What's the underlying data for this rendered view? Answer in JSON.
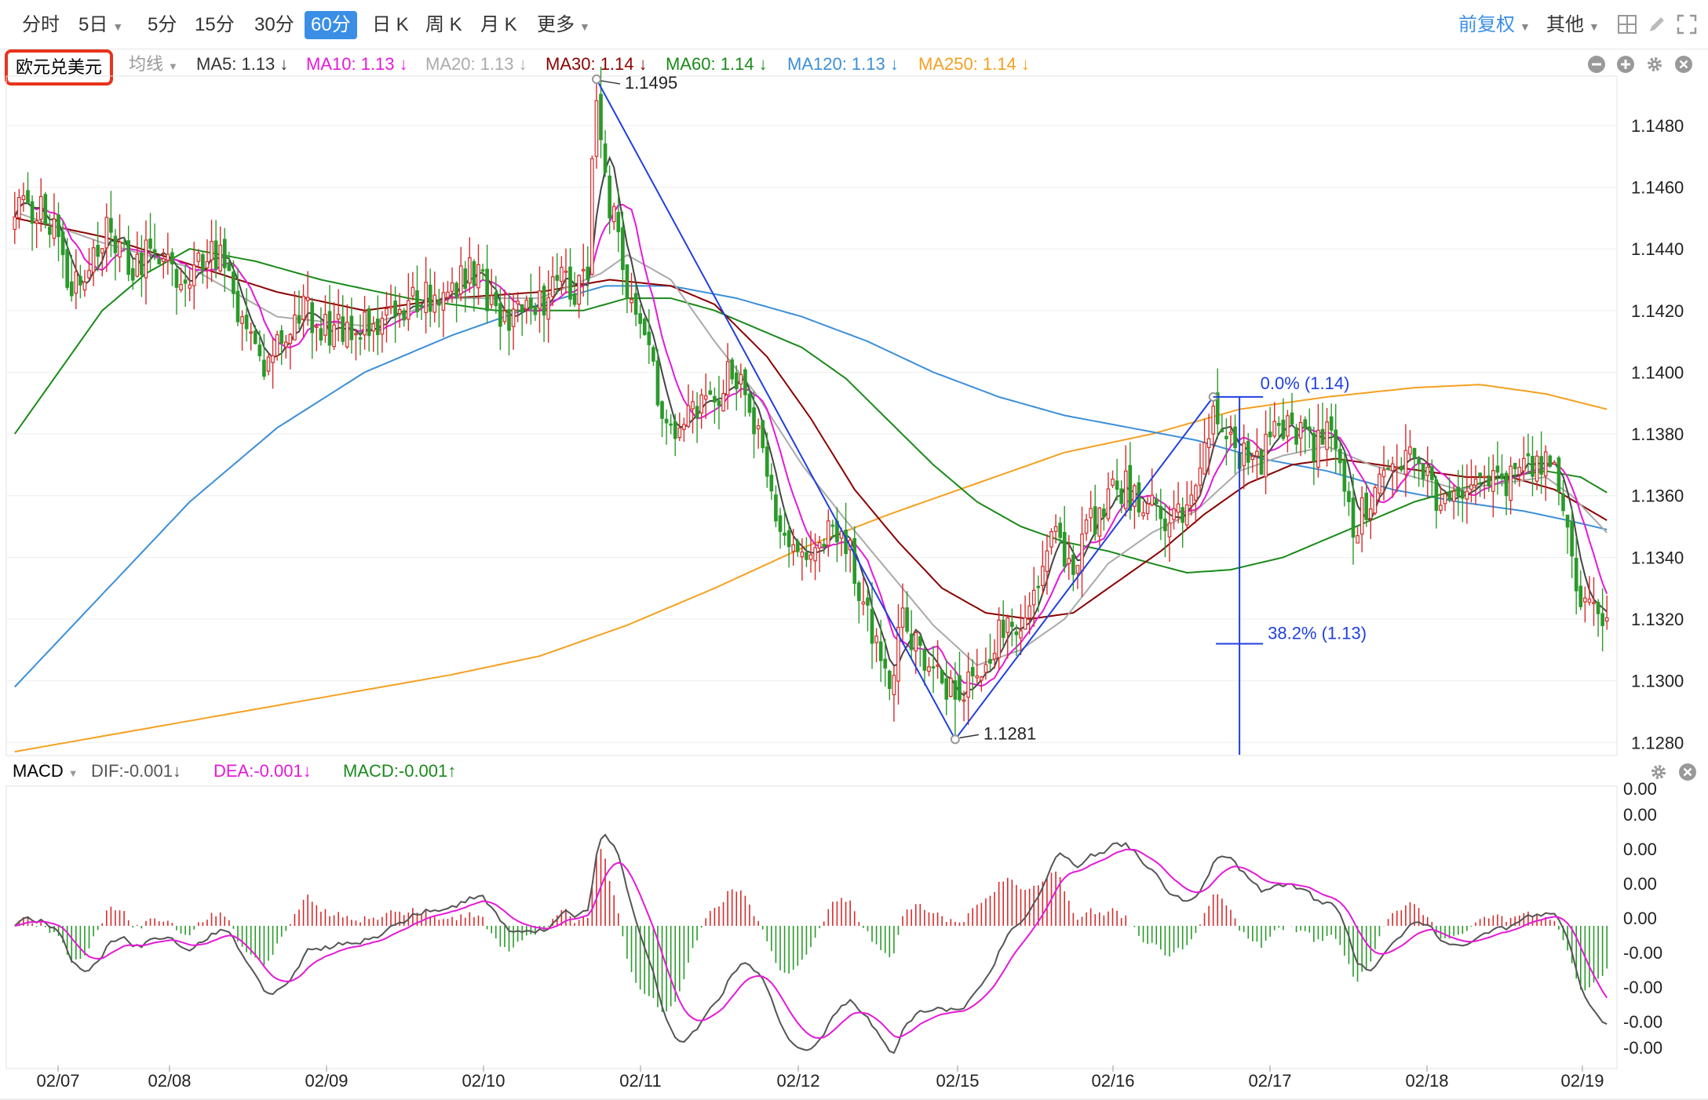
{
  "toolbar": {
    "timeframes": [
      {
        "label": "分时",
        "active": false,
        "caret": false
      },
      {
        "label": "5日",
        "active": false,
        "caret": true
      },
      {
        "label": "5分",
        "active": false,
        "caret": false
      },
      {
        "label": "15分",
        "active": false,
        "caret": false
      },
      {
        "label": "30分",
        "active": false,
        "caret": false
      },
      {
        "label": "60分",
        "active": true,
        "caret": false
      },
      {
        "label": "日 K",
        "active": false,
        "caret": false
      },
      {
        "label": "周 K",
        "active": false,
        "caret": false
      },
      {
        "label": "月 K",
        "active": false,
        "caret": false
      },
      {
        "label": "更多",
        "active": false,
        "caret": true
      }
    ],
    "adjust_label": "前复权",
    "other_label": "其他",
    "accent_color": "#3a8ee6"
  },
  "main_chart": {
    "symbol": "欧元兑美元",
    "indicator_label": "均线",
    "ma_legend": [
      {
        "label": "MA5: 1.13",
        "arrow": "↓",
        "color": "#333333"
      },
      {
        "label": "MA10: 1.13",
        "arrow": "↓",
        "color": "#e619d8"
      },
      {
        "label": "MA20: 1.13",
        "arrow": "↓",
        "color": "#aaaaaa"
      },
      {
        "label": "MA30: 1.14",
        "arrow": "↓",
        "color": "#8b0000"
      },
      {
        "label": "MA60: 1.14",
        "arrow": "↓",
        "color": "#1a8a1a"
      },
      {
        "label": "MA120: 1.13",
        "arrow": "↓",
        "color": "#3b8fd8"
      },
      {
        "label": "MA250: 1.14",
        "arrow": "↓",
        "color": "#f5a020"
      }
    ],
    "y_ticks": [
      "1.1480",
      "1.1460",
      "1.1440",
      "1.1420",
      "1.1400",
      "1.1380",
      "1.1360",
      "1.1340",
      "1.1320",
      "1.1300",
      "1.1280"
    ],
    "annotations": {
      "high": "1.1495",
      "low": "1.1281",
      "fib_0": "0.0% (1.14)",
      "fib_382": "38.2% (1.13)"
    }
  },
  "macd_panel": {
    "title": "MACD",
    "dif_label": "DIF:-0.001↓",
    "dea_label": "DEA:-0.001↓",
    "macd_label": "MACD:-0.001↑",
    "y_ticks": [
      "0.00",
      "0.00",
      "0.00",
      "0.00",
      "0.00",
      "-0.00",
      "-0.00",
      "-0.00",
      "-0.00"
    ]
  },
  "x_ticks": [
    "02/07",
    "02/08",
    "02/09",
    "02/10",
    "02/11",
    "02/12",
    "02/15",
    "02/16",
    "02/17",
    "02/18",
    "02/19"
  ],
  "chart_data": {
    "type": "candlestick",
    "ylim": [
      1.1276,
      1.1496
    ],
    "x_ticks": [
      "02/07",
      "02/08",
      "02/09",
      "02/10",
      "02/11",
      "02/12",
      "02/15",
      "02/16",
      "02/17",
      "02/18",
      "02/19"
    ],
    "price_knots": [
      [
        0,
        1.145
      ],
      [
        3,
        1.1455
      ],
      [
        6,
        1.1452
      ],
      [
        9,
        1.1445
      ],
      [
        12,
        1.1432
      ],
      [
        15,
        1.1425
      ],
      [
        18,
        1.1438
      ],
      [
        21,
        1.1445
      ],
      [
        24,
        1.144
      ],
      [
        27,
        1.1432
      ],
      [
        30,
        1.144
      ],
      [
        33,
        1.1438
      ],
      [
        36,
        1.143
      ],
      [
        40,
        1.143
      ],
      [
        44,
        1.144
      ],
      [
        47,
        1.1438
      ],
      [
        50,
        1.1423
      ],
      [
        53,
        1.141
      ],
      [
        56,
        1.1402
      ],
      [
        59,
        1.1408
      ],
      [
        62,
        1.1415
      ],
      [
        65,
        1.142
      ],
      [
        68,
        1.1418
      ],
      [
        72,
        1.1412
      ],
      [
        75,
        1.1416
      ],
      [
        80,
        1.1414
      ],
      [
        85,
        1.142
      ],
      [
        90,
        1.1422
      ],
      [
        95,
        1.1424
      ],
      [
        100,
        1.1428
      ],
      [
        103,
        1.1432
      ],
      [
        106,
        1.143
      ],
      [
        109,
        1.1422
      ],
      [
        112,
        1.1416
      ],
      [
        116,
        1.142
      ],
      [
        120,
        1.1423
      ],
      [
        124,
        1.1428
      ],
      [
        126,
        1.1432
      ],
      [
        128,
        1.1426
      ],
      [
        131,
        1.1435
      ],
      [
        132,
        1.147
      ],
      [
        133,
        1.1488
      ],
      [
        134,
        1.1475
      ],
      [
        136,
        1.1455
      ],
      [
        138,
        1.1445
      ],
      [
        140,
        1.1425
      ],
      [
        143,
        1.1415
      ],
      [
        146,
        1.1398
      ],
      [
        149,
        1.1385
      ],
      [
        152,
        1.138
      ],
      [
        155,
        1.1388
      ],
      [
        158,
        1.1392
      ],
      [
        161,
        1.1395
      ],
      [
        164,
        1.14
      ],
      [
        167,
        1.1392
      ],
      [
        170,
        1.1378
      ],
      [
        173,
        1.1362
      ],
      [
        176,
        1.1345
      ],
      [
        179,
        1.134
      ],
      [
        182,
        1.1335
      ],
      [
        185,
        1.1345
      ],
      [
        188,
        1.1348
      ],
      [
        191,
        1.134
      ],
      [
        194,
        1.1325
      ],
      [
        197,
        1.131
      ],
      [
        200,
        1.1302
      ],
      [
        203,
        1.1318
      ],
      [
        206,
        1.1312
      ],
      [
        209,
        1.1306
      ],
      [
        212,
        1.1298
      ],
      [
        215,
        1.1296
      ],
      [
        218,
        1.13
      ],
      [
        221,
        1.1305
      ],
      [
        224,
        1.1312
      ],
      [
        227,
        1.132
      ],
      [
        230,
        1.1316
      ],
      [
        233,
        1.1325
      ],
      [
        236,
        1.1344
      ],
      [
        239,
        1.1345
      ],
      [
        242,
        1.1332
      ],
      [
        245,
        1.1348
      ],
      [
        248,
        1.1356
      ],
      [
        251,
        1.136
      ],
      [
        254,
        1.1362
      ],
      [
        257,
        1.1358
      ],
      [
        260,
        1.1355
      ],
      [
        263,
        1.135
      ],
      [
        266,
        1.1352
      ],
      [
        269,
        1.136
      ],
      [
        272,
        1.1378
      ],
      [
        274,
        1.139
      ],
      [
        276,
        1.1385
      ],
      [
        279,
        1.1378
      ],
      [
        282,
        1.1368
      ],
      [
        285,
        1.1372
      ],
      [
        288,
        1.138
      ],
      [
        291,
        1.1382
      ],
      [
        294,
        1.1378
      ],
      [
        297,
        1.1376
      ],
      [
        300,
        1.138
      ],
      [
        303,
        1.1372
      ],
      [
        306,
        1.135
      ],
      [
        309,
        1.1355
      ],
      [
        312,
        1.1362
      ],
      [
        315,
        1.137
      ],
      [
        318,
        1.1373
      ],
      [
        321,
        1.1368
      ],
      [
        324,
        1.1362
      ],
      [
        327,
        1.1358
      ],
      [
        330,
        1.136
      ],
      [
        333,
        1.1362
      ],
      [
        336,
        1.1364
      ],
      [
        339,
        1.1366
      ],
      [
        342,
        1.1365
      ],
      [
        345,
        1.1368
      ],
      [
        348,
        1.1372
      ],
      [
        350,
        1.1373
      ],
      [
        352,
        1.1368
      ],
      [
        354,
        1.1355
      ],
      [
        356,
        1.134
      ],
      [
        358,
        1.1328
      ],
      [
        360,
        1.1325
      ],
      [
        362,
        1.1322
      ],
      [
        364,
        1.1318
      ]
    ],
    "ma_knots": {
      "ma20": [
        [
          0,
          1.1452
        ],
        [
          20,
          1.1442
        ],
        [
          40,
          1.1434
        ],
        [
          60,
          1.1418
        ],
        [
          80,
          1.1415
        ],
        [
          100,
          1.1424
        ],
        [
          120,
          1.1424
        ],
        [
          134,
          1.1432
        ],
        [
          140,
          1.1438
        ],
        [
          150,
          1.143
        ],
        [
          160,
          1.141
        ],
        [
          170,
          1.1392
        ],
        [
          180,
          1.137
        ],
        [
          190,
          1.1352
        ],
        [
          200,
          1.1335
        ],
        [
          210,
          1.1318
        ],
        [
          220,
          1.1305
        ],
        [
          230,
          1.131
        ],
        [
          240,
          1.132
        ],
        [
          250,
          1.1338
        ],
        [
          260,
          1.1348
        ],
        [
          270,
          1.1355
        ],
        [
          280,
          1.1368
        ],
        [
          290,
          1.1373
        ],
        [
          300,
          1.1376
        ],
        [
          310,
          1.137
        ],
        [
          320,
          1.1366
        ],
        [
          330,
          1.1362
        ],
        [
          340,
          1.1364
        ],
        [
          350,
          1.1366
        ],
        [
          356,
          1.136
        ],
        [
          364,
          1.1348
        ]
      ],
      "ma30": [
        [
          0,
          1.145
        ],
        [
          20,
          1.1444
        ],
        [
          40,
          1.1435
        ],
        [
          60,
          1.1426
        ],
        [
          80,
          1.142
        ],
        [
          100,
          1.1424
        ],
        [
          120,
          1.1426
        ],
        [
          136,
          1.143
        ],
        [
          150,
          1.1428
        ],
        [
          160,
          1.1422
        ],
        [
          172,
          1.1405
        ],
        [
          182,
          1.1385
        ],
        [
          192,
          1.1362
        ],
        [
          202,
          1.1345
        ],
        [
          212,
          1.133
        ],
        [
          222,
          1.1322
        ],
        [
          232,
          1.132
        ],
        [
          242,
          1.1322
        ],
        [
          252,
          1.1332
        ],
        [
          262,
          1.1342
        ],
        [
          272,
          1.1354
        ],
        [
          282,
          1.1364
        ],
        [
          292,
          1.137
        ],
        [
          302,
          1.1372
        ],
        [
          312,
          1.137
        ],
        [
          322,
          1.1368
        ],
        [
          332,
          1.1366
        ],
        [
          342,
          1.1366
        ],
        [
          352,
          1.1362
        ],
        [
          364,
          1.1352
        ]
      ],
      "ma60": [
        [
          0,
          1.138
        ],
        [
          10,
          1.14
        ],
        [
          20,
          1.142
        ],
        [
          30,
          1.1432
        ],
        [
          40,
          1.144
        ],
        [
          55,
          1.1436
        ],
        [
          70,
          1.143
        ],
        [
          90,
          1.1424
        ],
        [
          110,
          1.142
        ],
        [
          130,
          1.142
        ],
        [
          140,
          1.1424
        ],
        [
          150,
          1.1424
        ],
        [
          160,
          1.142
        ],
        [
          170,
          1.1414
        ],
        [
          180,
          1.1408
        ],
        [
          190,
          1.1398
        ],
        [
          200,
          1.1384
        ],
        [
          210,
          1.137
        ],
        [
          220,
          1.1358
        ],
        [
          230,
          1.135
        ],
        [
          240,
          1.1345
        ],
        [
          250,
          1.1342
        ],
        [
          260,
          1.1338
        ],
        [
          268,
          1.1335
        ],
        [
          278,
          1.1336
        ],
        [
          290,
          1.134
        ],
        [
          300,
          1.1346
        ],
        [
          310,
          1.1352
        ],
        [
          320,
          1.1358
        ],
        [
          330,
          1.1362
        ],
        [
          340,
          1.1366
        ],
        [
          350,
          1.1368
        ],
        [
          358,
          1.1366
        ],
        [
          364,
          1.1361
        ]
      ],
      "ma120": [
        [
          0,
          1.1298
        ],
        [
          20,
          1.1328
        ],
        [
          40,
          1.1358
        ],
        [
          60,
          1.1382
        ],
        [
          80,
          1.14
        ],
        [
          100,
          1.1412
        ],
        [
          120,
          1.1422
        ],
        [
          135,
          1.1428
        ],
        [
          150,
          1.1428
        ],
        [
          165,
          1.1424
        ],
        [
          180,
          1.1418
        ],
        [
          195,
          1.141
        ],
        [
          210,
          1.14
        ],
        [
          225,
          1.1392
        ],
        [
          240,
          1.1386
        ],
        [
          255,
          1.1382
        ],
        [
          270,
          1.1378
        ],
        [
          285,
          1.1372
        ],
        [
          300,
          1.1368
        ],
        [
          315,
          1.1362
        ],
        [
          330,
          1.1358
        ],
        [
          345,
          1.1355
        ],
        [
          355,
          1.1352
        ],
        [
          364,
          1.1349
        ]
      ],
      "ma250": [
        [
          0,
          1.1277
        ],
        [
          20,
          1.1282
        ],
        [
          40,
          1.1287
        ],
        [
          60,
          1.1292
        ],
        [
          80,
          1.1297
        ],
        [
          100,
          1.1302
        ],
        [
          120,
          1.1308
        ],
        [
          140,
          1.1318
        ],
        [
          160,
          1.133
        ],
        [
          180,
          1.1343
        ],
        [
          200,
          1.1354
        ],
        [
          220,
          1.1364
        ],
        [
          240,
          1.1374
        ],
        [
          260,
          1.138
        ],
        [
          280,
          1.1388
        ],
        [
          300,
          1.1392
        ],
        [
          320,
          1.1395
        ],
        [
          335,
          1.1396
        ],
        [
          350,
          1.1393
        ],
        [
          364,
          1.1388
        ]
      ]
    },
    "fib": {
      "high": 1.1392,
      "level_382": 1.1312
    }
  }
}
